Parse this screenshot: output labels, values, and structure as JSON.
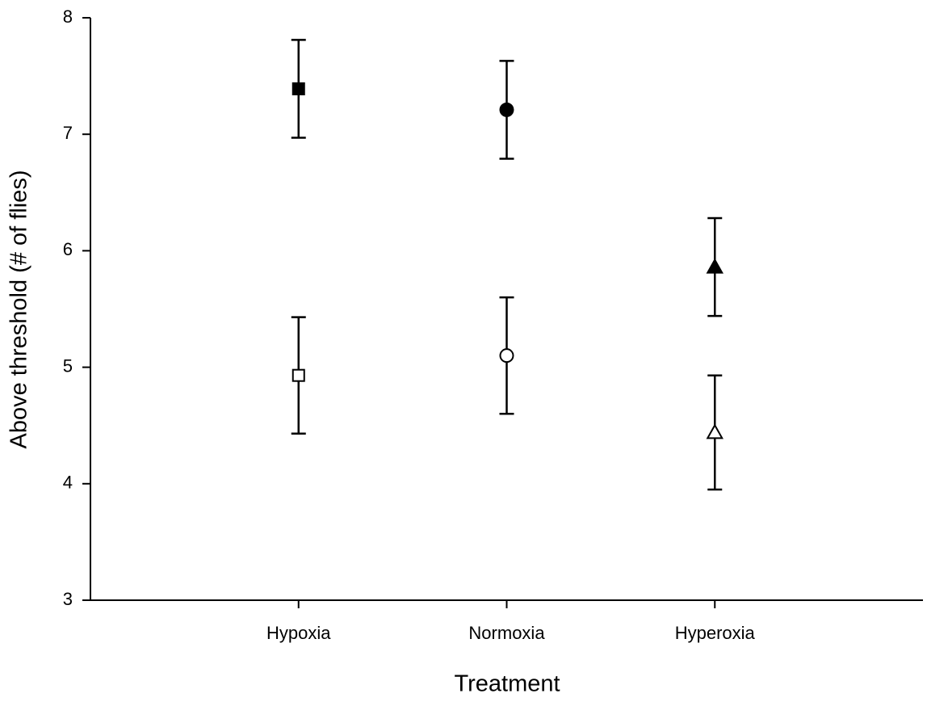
{
  "chart_data": {
    "type": "scatter",
    "x_label": "Treatment",
    "y_label": "Above threshold (# of flies)",
    "categories": [
      "Hypoxia",
      "Normoxia",
      "Hyperoxia"
    ],
    "markers": [
      "square",
      "circle",
      "triangle"
    ],
    "series": [
      {
        "color": "#000000",
        "filled": true,
        "values": [
          7.39,
          7.21,
          5.86
        ],
        "errors": [
          0.42,
          0.42,
          0.42
        ]
      },
      {
        "color": "#000000",
        "filled": false,
        "values": [
          4.93,
          5.1,
          4.44
        ],
        "errors": [
          0.5,
          0.5,
          0.49
        ]
      }
    ],
    "ylim": [
      3,
      8
    ],
    "yticks": [
      3,
      4,
      5,
      6,
      7,
      8
    ],
    "grid": false
  }
}
